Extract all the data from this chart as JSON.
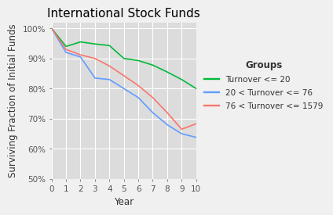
{
  "title": "International Stock Funds",
  "xlabel": "Year",
  "ylabel": "Surviving Fraction of Initial Funds",
  "plot_bg_color": "#DCDCDC",
  "fig_bg_color": "#F0F0F0",
  "grid_color": "#FFFFFF",
  "legend_title": "Groups",
  "legend_bg": "#F0F0F0",
  "series": [
    {
      "label": "Turnover <= 20",
      "color": "#00BA38",
      "x": [
        0,
        1,
        2,
        3,
        4,
        5,
        6,
        7,
        8,
        9,
        10
      ],
      "y": [
        1.0,
        0.94,
        0.955,
        0.948,
        0.943,
        0.9,
        0.893,
        0.878,
        0.855,
        0.83,
        0.8
      ]
    },
    {
      "label": "20 < Turnover <= 76",
      "color": "#619CFF",
      "x": [
        0,
        1,
        2,
        3,
        4,
        5,
        6,
        7,
        8,
        9,
        10
      ],
      "y": [
        1.0,
        0.92,
        0.905,
        0.835,
        0.83,
        0.8,
        0.77,
        0.72,
        0.68,
        0.65,
        0.638
      ]
    },
    {
      "label": "76 < Turnover <= 1579",
      "color": "#F8766D",
      "x": [
        0,
        1,
        2,
        3,
        4,
        5,
        6,
        7,
        8,
        9,
        10
      ],
      "y": [
        1.0,
        0.93,
        0.912,
        0.9,
        0.875,
        0.843,
        0.81,
        0.77,
        0.72,
        0.665,
        0.683
      ]
    }
  ],
  "xlim": [
    0,
    10
  ],
  "ylim": [
    0.5,
    1.02
  ],
  "yticks": [
    0.5,
    0.6,
    0.7,
    0.8,
    0.9,
    1.0
  ],
  "xticks": [
    0,
    1,
    2,
    3,
    4,
    5,
    6,
    7,
    8,
    9,
    10
  ],
  "title_fontsize": 11,
  "axis_label_fontsize": 8.5,
  "tick_fontsize": 7.5,
  "legend_fontsize": 7.5,
  "legend_title_fontsize": 8.5,
  "line_width": 1.2
}
